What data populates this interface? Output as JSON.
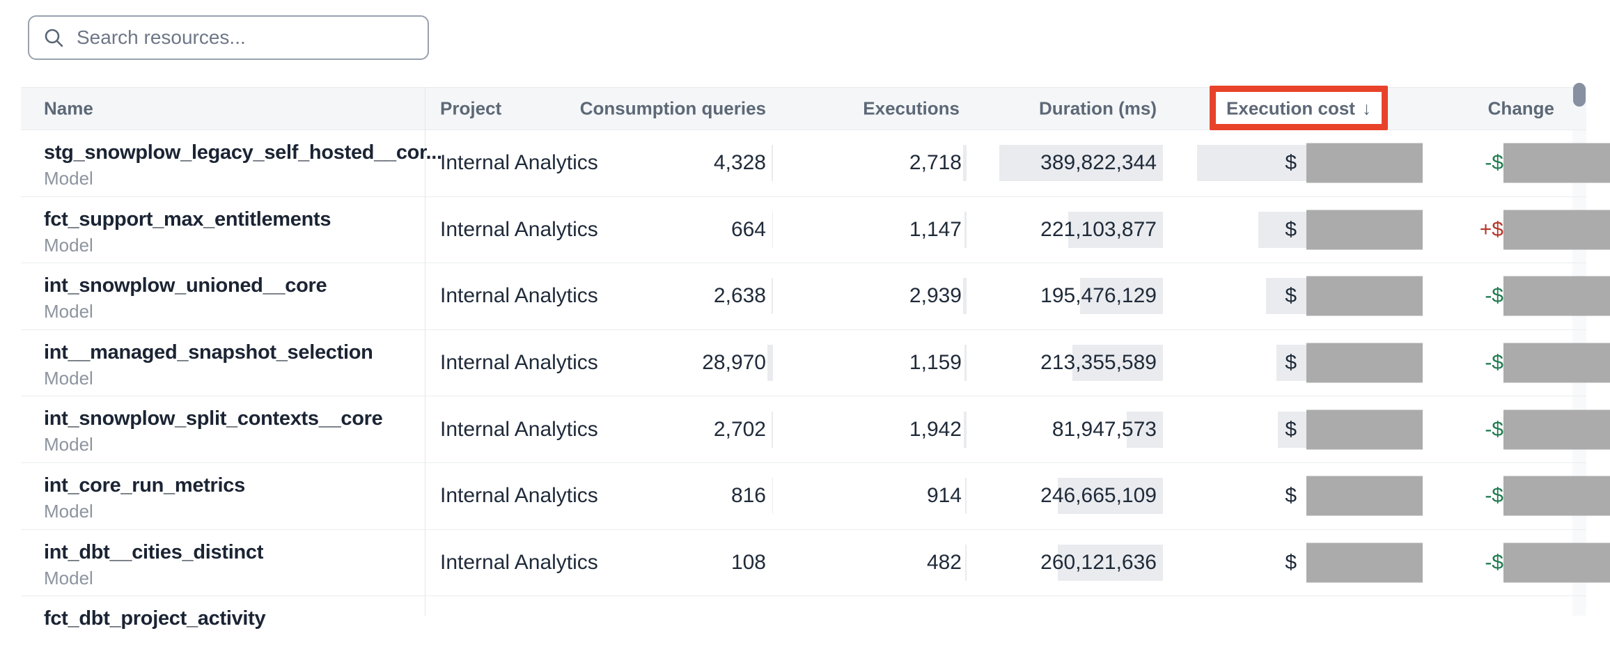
{
  "search": {
    "placeholder": "Search resources..."
  },
  "table": {
    "columns": [
      {
        "key": "name",
        "label": "Name"
      },
      {
        "key": "project",
        "label": "Project"
      },
      {
        "key": "consumption",
        "label": "Consumption queries"
      },
      {
        "key": "executions",
        "label": "Executions"
      },
      {
        "key": "duration",
        "label": "Duration (ms)"
      },
      {
        "key": "cost",
        "label": "Execution cost",
        "sort_arrow": "↓",
        "sorted": "descending",
        "highlighted": true
      },
      {
        "key": "change",
        "label": "Change"
      }
    ],
    "rows": [
      {
        "name": "stg_snowplow_legacy_self_hosted__cor...",
        "type": "Model",
        "project": "Internal Analytics",
        "consumption": "4,328",
        "executions": "2,718",
        "duration": "389,822,344",
        "cost_prefix": "$",
        "cost_redacted": true,
        "change_sign": "-$",
        "change_direction": "down",
        "bars": {
          "cons": 2,
          "exec": 5,
          "dur": 235,
          "cost": 157
        }
      },
      {
        "name": "fct_support_max_entitlements",
        "type": "Model",
        "project": "Internal Analytics",
        "consumption": "664",
        "executions": "1,147",
        "duration": "221,103,877",
        "cost_prefix": "$",
        "cost_redacted": true,
        "change_sign": "+$",
        "change_direction": "up",
        "bars": {
          "cons": 1,
          "exec": 3,
          "dur": 136,
          "cost": 69
        }
      },
      {
        "name": "int_snowplow_unioned__core",
        "type": "Model",
        "project": "Internal Analytics",
        "consumption": "2,638",
        "executions": "2,939",
        "duration": "195,476,129",
        "cost_prefix": "$",
        "cost_redacted": true,
        "change_sign": "-$",
        "change_direction": "down",
        "bars": {
          "cons": 2,
          "exec": 5,
          "dur": 119,
          "cost": 58
        }
      },
      {
        "name": "int__managed_snapshot_selection",
        "type": "Model",
        "project": "Internal Analytics",
        "consumption": "28,970",
        "executions": "1,159",
        "duration": "213,355,589",
        "cost_prefix": "$",
        "cost_redacted": true,
        "change_sign": "-$",
        "change_direction": "down",
        "bars": {
          "cons": 8,
          "exec": 3,
          "dur": 130,
          "cost": 43
        }
      },
      {
        "name": "int_snowplow_split_contexts__core",
        "type": "Model",
        "project": "Internal Analytics",
        "consumption": "2,702",
        "executions": "1,942",
        "duration": "81,947,573",
        "cost_prefix": "$",
        "cost_redacted": true,
        "change_sign": "-$",
        "change_direction": "down",
        "bars": {
          "cons": 2,
          "exec": 4,
          "dur": 52,
          "cost": 41
        }
      },
      {
        "name": "int_core_run_metrics",
        "type": "Model",
        "project": "Internal Analytics",
        "consumption": "816",
        "executions": "914",
        "duration": "246,665,109",
        "cost_prefix": "$",
        "cost_redacted": true,
        "change_sign": "-$",
        "change_direction": "down",
        "bars": {
          "cons": 1,
          "exec": 2,
          "dur": 151,
          "cost": 0
        }
      },
      {
        "name": "int_dbt__cities_distinct",
        "type": "Model",
        "project": "Internal Analytics",
        "consumption": "108",
        "executions": "482",
        "duration": "260,121,636",
        "cost_prefix": "$",
        "cost_redacted": true,
        "change_sign": "-$",
        "change_direction": "down",
        "bars": {
          "cons": 0,
          "exec": 2,
          "dur": 151,
          "cost": 0
        }
      },
      {
        "name": "fct_dbt_project_activity",
        "partial": true
      }
    ]
  },
  "colors": {
    "highlight_box": "#e8432a",
    "redaction_block": "#ababab",
    "cell_bar": "#e9ebee",
    "change_up_red": "#b5362b",
    "change_down_green": "#1e7b4f"
  }
}
